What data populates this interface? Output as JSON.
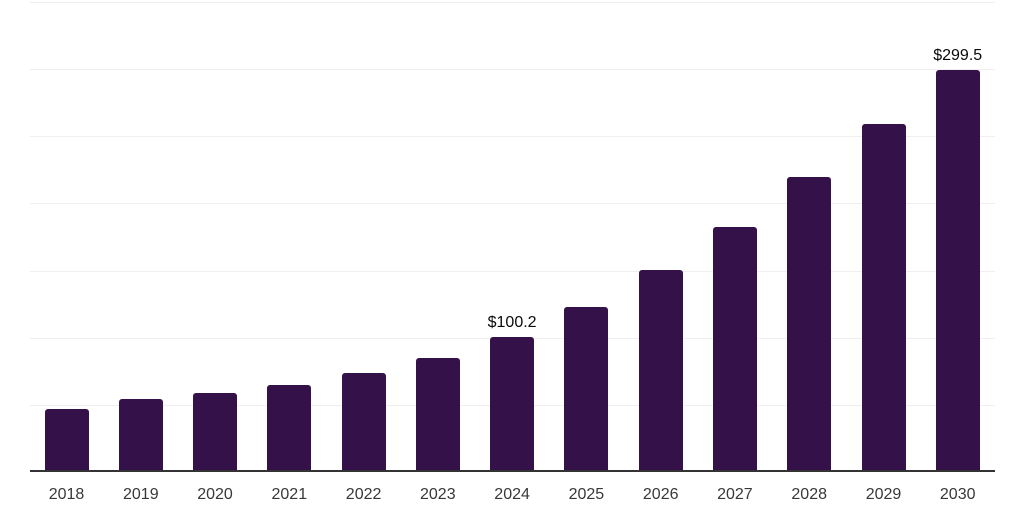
{
  "chart_data": {
    "type": "bar",
    "title": "",
    "xlabel": "",
    "ylabel": "",
    "categories": [
      "2018",
      "2019",
      "2020",
      "2021",
      "2022",
      "2023",
      "2024",
      "2025",
      "2026",
      "2027",
      "2028",
      "2029",
      "2030"
    ],
    "values": [
      46.9,
      54.1,
      58.6,
      64.7,
      73.4,
      85.0,
      100.2,
      122.8,
      150.1,
      182.5,
      219.5,
      259.1,
      299.5
    ],
    "bar_labels": [
      "",
      "",
      "",
      "",
      "",
      "",
      "$100.2",
      "",
      "",
      "",
      "",
      "",
      "$299.5"
    ],
    "value_prefix": "$",
    "ylim": [
      0,
      350
    ],
    "grid_interval": 50,
    "grid": "horizontal-only",
    "y_tick_labels_visible": false,
    "legend": "none"
  },
  "colors": {
    "background": "#ffffff",
    "bar": "#351149",
    "gridline": "#efefef",
    "axis": "#333333",
    "x_tick_label": "#383838",
    "value_label": "#0a0a0a"
  }
}
